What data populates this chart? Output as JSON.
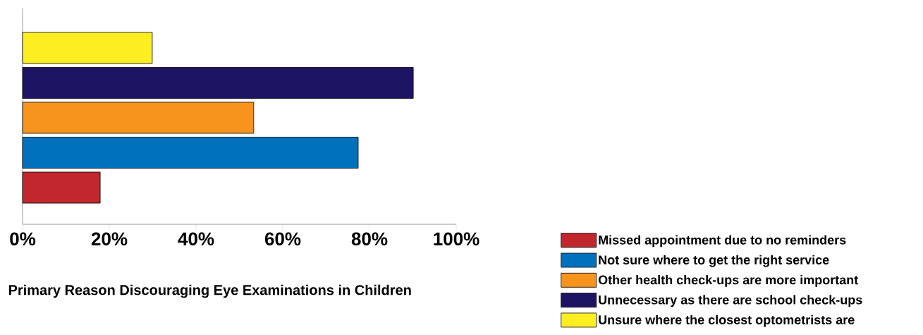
{
  "chart_data": {
    "type": "bar",
    "orientation": "horizontal",
    "title": "Primary Reason Discouraging Eye Examinations in Children",
    "categories": [
      null,
      null,
      null,
      null,
      null
    ],
    "series": [
      {
        "name": "Missed appointment due to no reminders",
        "color": "#c1272d",
        "values": [
          null,
          null,
          null,
          null,
          17.9
        ]
      },
      {
        "name": "Not sure where to get the right service",
        "color": "#0071bc",
        "values": [
          null,
          null,
          null,
          77.4,
          null
        ]
      },
      {
        "name": "Other health check-ups are more important",
        "color": "#f7941d",
        "values": [
          null,
          null,
          53.3,
          null,
          null
        ]
      },
      {
        "name": "Unnecessary as there are school check-ups",
        "color": "#1e1464",
        "values": [
          null,
          90.1,
          null,
          null,
          null
        ]
      },
      {
        "name": "Unsure where the closest optometrists are",
        "color": "#fcee21",
        "values": [
          29.9,
          null,
          null,
          null,
          null
        ]
      }
    ],
    "xlim": [
      0,
      100
    ],
    "xticks": [
      {
        "value": 0,
        "label": "0%"
      },
      {
        "value": 20,
        "label": "20%"
      },
      {
        "value": 40,
        "label": "40%"
      },
      {
        "value": 60,
        "label": "60%"
      },
      {
        "value": 80,
        "label": "80%"
      },
      {
        "value": 100,
        "label": "100%"
      }
    ],
    "tick_labels": "x",
    "legend": "bottom right"
  }
}
